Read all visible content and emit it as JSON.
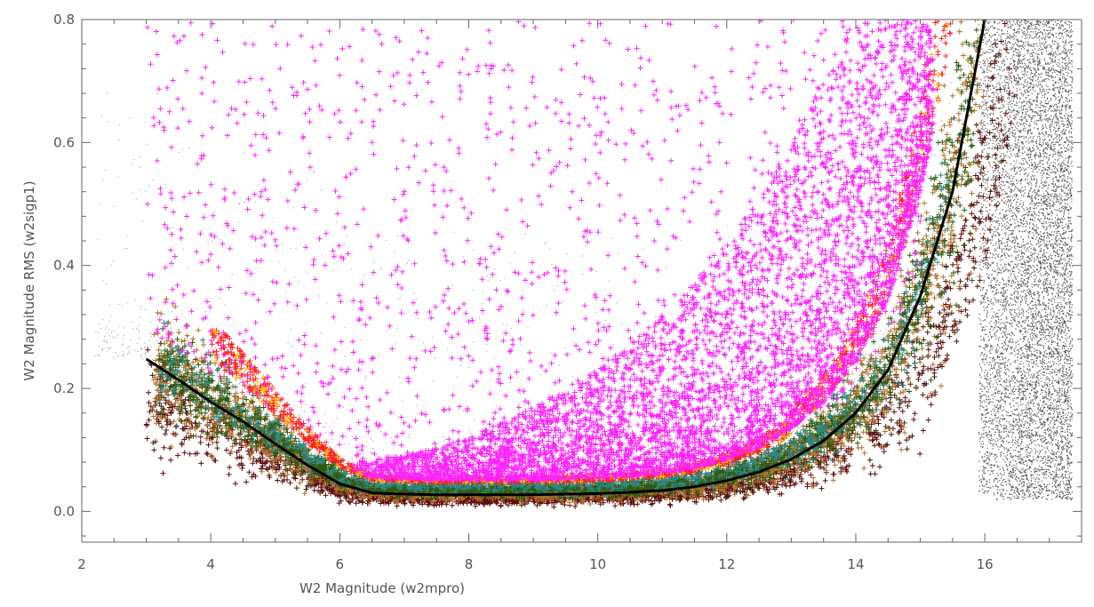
{
  "chart_data": {
    "type": "scatter",
    "title": "",
    "xlabel": "W2 Magnitude (w2mpro)",
    "ylabel": "W2 Magnitude RMS (w2sigp1)",
    "xlim": [
      2,
      17.5
    ],
    "ylim": [
      -0.05,
      0.8
    ],
    "x_ticks": [
      2,
      4,
      6,
      8,
      10,
      12,
      14,
      16
    ],
    "y_ticks": [
      0.0,
      0.2,
      0.4,
      0.6,
      0.8
    ],
    "x_tick_labels": [
      "2",
      "4",
      "6",
      "8",
      "10",
      "12",
      "14",
      "16"
    ],
    "y_tick_labels": [
      "0.0",
      "0.2",
      "0.4",
      "0.6",
      "0.8"
    ],
    "grid": false,
    "legend": "none",
    "colors": {
      "background_points": "#555555",
      "faint_tail": "#8a8a8a",
      "magenta": "#ff22ff",
      "red": "#ff1e1e",
      "brown": "#b0702a",
      "green": "#2b5a10",
      "teal": "#2a8a8a",
      "dark_maroon": "#5a0e0e",
      "yellow": "#ffd000",
      "trend_line": "#000000",
      "axis": "#666666"
    },
    "series": [
      {
        "marker": "line",
        "x": [
          3.0,
          3.5,
          4.0,
          4.5,
          5.0,
          5.5,
          6.0,
          6.5,
          7.0,
          7.5,
          8.0,
          8.5,
          9.0,
          9.5,
          10.0,
          10.5,
          11.0,
          11.5,
          12.0,
          12.5,
          13.0,
          13.5,
          14.0,
          14.5,
          15.0,
          15.5,
          16.0
        ],
        "y": [
          0.248,
          0.214,
          0.178,
          0.146,
          0.11,
          0.075,
          0.045,
          0.03,
          0.028,
          0.027,
          0.027,
          0.027,
          0.027,
          0.028,
          0.029,
          0.031,
          0.034,
          0.04,
          0.05,
          0.064,
          0.085,
          0.115,
          0.16,
          0.23,
          0.35,
          0.52,
          0.8
        ]
      }
    ]
  }
}
